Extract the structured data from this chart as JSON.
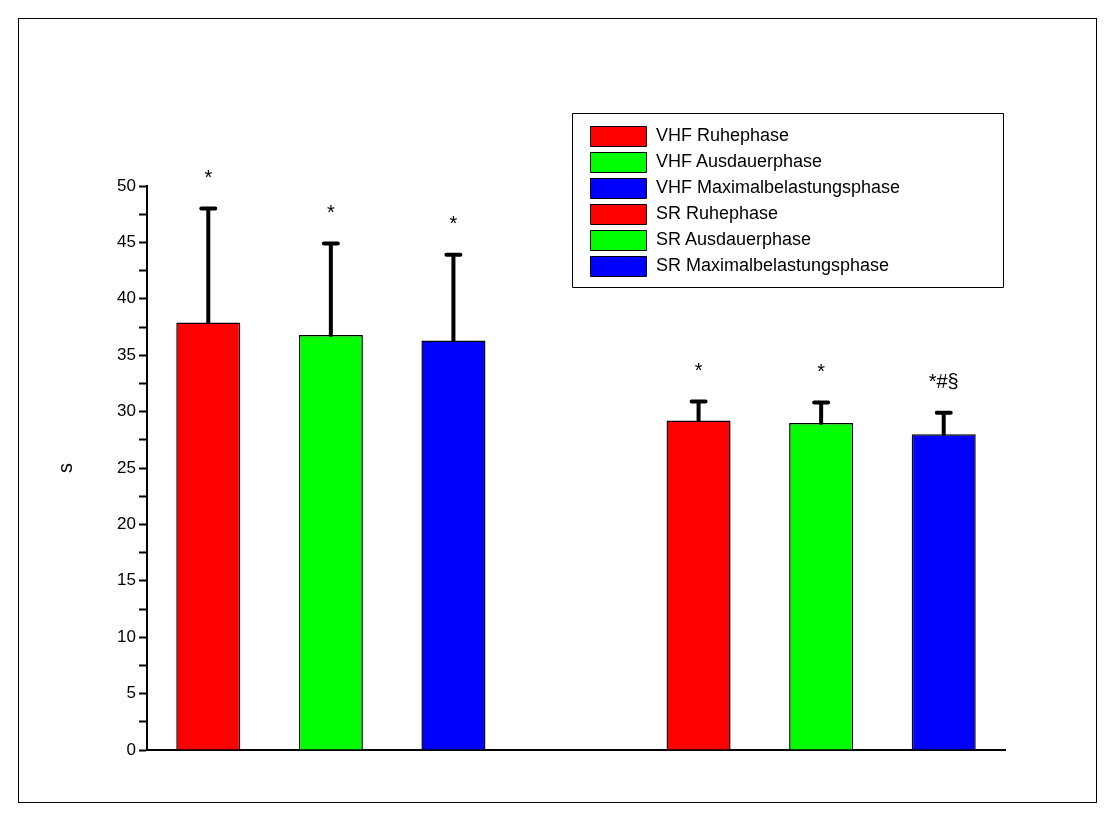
{
  "chart_data": {
    "type": "bar",
    "ylabel": "s",
    "categories": [
      null,
      null,
      null,
      null,
      null,
      null,
      null
    ],
    "series": [
      {
        "name": "VHF Ruhephase",
        "color": "#ff0000",
        "values": [
          37.9,
          null,
          null,
          null,
          null,
          null,
          null
        ],
        "errors": [
          [
            37.9,
            48.0
          ],
          null,
          null,
          null,
          null,
          null,
          null
        ]
      },
      {
        "name": "VHF Ausdauerphase",
        "color": "#00ff00",
        "values": [
          null,
          36.8,
          null,
          null,
          null,
          null,
          null
        ],
        "errors": [
          null,
          [
            36.8,
            44.9
          ],
          null,
          null,
          null,
          null,
          null
        ]
      },
      {
        "name": "VHF Maximalbelastungsphase",
        "color": "#0000ff",
        "values": [
          null,
          null,
          36.3,
          null,
          null,
          null,
          null
        ],
        "errors": [
          null,
          null,
          [
            36.3,
            43.9
          ],
          null,
          null,
          null,
          null
        ]
      },
      {
        "name": "SR Ruhephase",
        "color": "#ff0000",
        "values": [
          null,
          null,
          null,
          null,
          29.2,
          null,
          null
        ],
        "errors": [
          null,
          null,
          null,
          null,
          [
            29.2,
            30.9
          ],
          null,
          null
        ]
      },
      {
        "name": "SR Ausdauerphase",
        "color": "#00ff00",
        "values": [
          null,
          null,
          null,
          null,
          null,
          29.0,
          null
        ],
        "errors": [
          null,
          null,
          null,
          null,
          null,
          [
            29.0,
            30.8
          ],
          null
        ]
      },
      {
        "name": "SR Maximalbelastungsphase",
        "color": "#0000ff",
        "values": [
          null,
          null,
          null,
          null,
          null,
          null,
          28.0
        ],
        "errors": [
          null,
          null,
          null,
          null,
          null,
          null,
          [
            28.0,
            29.9
          ]
        ]
      }
    ],
    "annotations": [
      "*",
      "*",
      "*",
      "*",
      "*",
      "*#§"
    ],
    "ylim": [
      0,
      50
    ],
    "yticks": [
      0,
      {
        "value": 2.5,
        "label": null
      },
      5,
      {
        "value": 7.5,
        "label": null
      },
      10,
      {
        "value": 12.5,
        "label": null
      },
      15,
      {
        "value": 17.5,
        "label": null
      },
      20,
      {
        "value": 22.5,
        "label": null
      },
      25,
      {
        "value": 27.5,
        "label": null
      },
      30,
      {
        "value": 32.5,
        "label": null
      },
      35,
      {
        "value": 37.5,
        "label": null
      },
      40,
      {
        "value": 42.5,
        "label": null
      },
      45,
      {
        "value": 47.5,
        "label": null
      },
      50
    ],
    "tick_labels": "y",
    "grid": false,
    "legend": "top right"
  }
}
